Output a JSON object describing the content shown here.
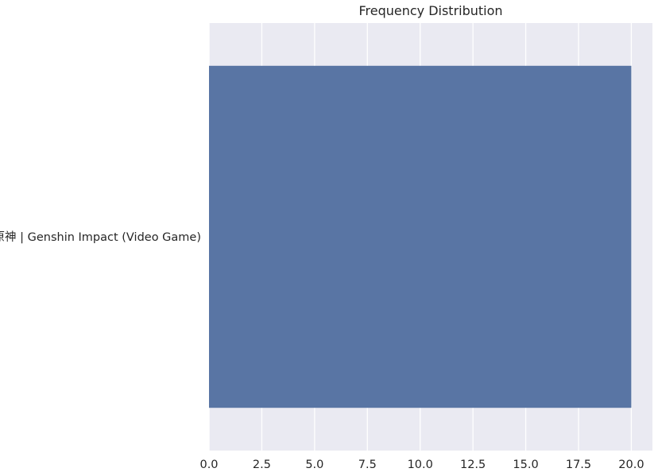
{
  "chart_data": {
    "type": "bar",
    "orientation": "horizontal",
    "title": "Frequency Distribution",
    "xlabel": "",
    "ylabel": "",
    "categories": [
      "原神 | Genshin Impact (Video Game)"
    ],
    "values": [
      20
    ],
    "xlim": [
      0,
      21
    ],
    "xticks": [
      0,
      2.5,
      5,
      7.5,
      10,
      12.5,
      15,
      17.5,
      20
    ],
    "xtick_labels": [
      "0.0",
      "2.5",
      "5.0",
      "7.5",
      "10.0",
      "12.5",
      "15.0",
      "17.5",
      "20.0"
    ],
    "grid": true,
    "colors": {
      "bar": "#5975a4",
      "plot_background": "#eaeaf2",
      "grid": "#ffffff",
      "text": "#262626"
    }
  }
}
